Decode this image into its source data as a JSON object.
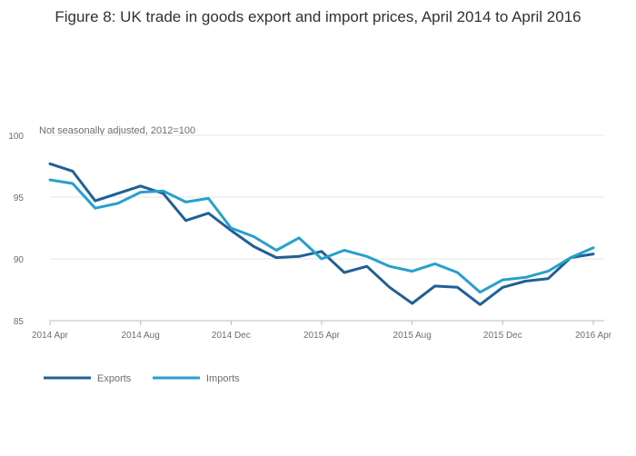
{
  "chart_data": {
    "type": "line",
    "title": "Figure 8: UK trade in goods export and import prices, April 2014 to April 2016",
    "subtitle": "Not seasonally adjusted, 2012=100",
    "x": [
      "2014 Apr",
      "2014 May",
      "2014 Jun",
      "2014 Jul",
      "2014 Aug",
      "2014 Sep",
      "2014 Oct",
      "2014 Nov",
      "2014 Dec",
      "2015 Jan",
      "2015 Feb",
      "2015 Mar",
      "2015 Apr",
      "2015 May",
      "2015 Jun",
      "2015 Jul",
      "2015 Aug",
      "2015 Sep",
      "2015 Oct",
      "2015 Nov",
      "2015 Dec",
      "2016 Jan",
      "2016 Feb",
      "2016 Mar",
      "2016 Apr"
    ],
    "x_tick_labels": [
      "2014 Apr",
      "2014 Aug",
      "2014 Dec",
      "2015 Apr",
      "2015 Aug",
      "2015 Dec",
      "2016 Apr"
    ],
    "y_ticks": [
      85,
      90,
      95,
      100
    ],
    "ylim": [
      85,
      100
    ],
    "grid": true,
    "legend_position": "bottom-left",
    "series": [
      {
        "name": "Exports",
        "color": "#206095",
        "values": [
          97.7,
          97.1,
          94.7,
          95.3,
          95.9,
          95.3,
          93.1,
          93.7,
          92.3,
          91.0,
          90.1,
          90.2,
          90.6,
          88.9,
          89.4,
          87.7,
          86.4,
          87.8,
          87.7,
          86.3,
          87.7,
          88.2,
          88.4,
          90.1,
          90.4
        ]
      },
      {
        "name": "Imports",
        "color": "#27a0cc",
        "values": [
          96.4,
          96.1,
          94.1,
          94.5,
          95.4,
          95.5,
          94.6,
          94.9,
          92.5,
          91.8,
          90.7,
          91.7,
          90.0,
          90.7,
          90.2,
          89.4,
          89.0,
          89.6,
          88.9,
          87.3,
          88.3,
          88.5,
          89.0,
          90.1,
          90.9
        ]
      }
    ]
  }
}
